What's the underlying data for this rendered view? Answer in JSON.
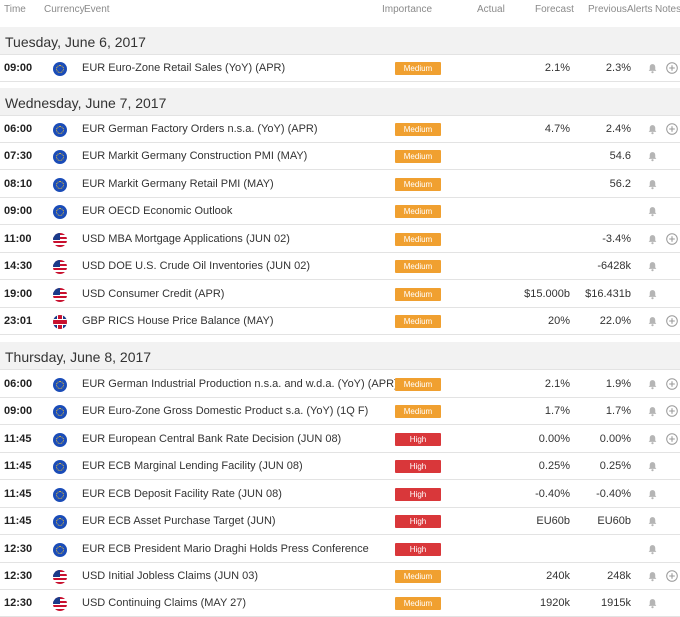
{
  "header": {
    "time": "Time",
    "currency": "Currency",
    "event": "Event",
    "importance": "Importance",
    "actual": "Actual",
    "forecast": "Forecast",
    "previous": "Previous",
    "alerts": "Alerts",
    "notes": "Notes"
  },
  "colors": {
    "medium": "#f0a030",
    "high": "#d9373a"
  },
  "days": [
    {
      "title": "Tuesday, June 6, 2017"
    },
    {
      "title": "Wednesday, June 7, 2017"
    },
    {
      "title": "Thursday, June 8, 2017"
    }
  ],
  "rows": [
    {
      "time": "09:00",
      "flag": "eur",
      "event": "EUR Euro-Zone Retail Sales (YoY) (APR)",
      "importance": "Medium",
      "forecast": "2.1%",
      "previous": "2.3%",
      "plus": true
    },
    {
      "time": "06:00",
      "flag": "eur",
      "event": "EUR German Factory Orders n.s.a. (YoY) (APR)",
      "importance": "Medium",
      "forecast": "4.7%",
      "previous": "2.4%",
      "plus": true
    },
    {
      "time": "07:30",
      "flag": "eur",
      "event": "EUR Markit Germany Construction PMI (MAY)",
      "importance": "Medium",
      "forecast": "",
      "previous": "54.6",
      "plus": false
    },
    {
      "time": "08:10",
      "flag": "eur",
      "event": "EUR Markit Germany Retail PMI (MAY)",
      "importance": "Medium",
      "forecast": "",
      "previous": "56.2",
      "plus": false
    },
    {
      "time": "09:00",
      "flag": "eur",
      "event": "EUR OECD Economic Outlook",
      "importance": "Medium",
      "forecast": "",
      "previous": "",
      "plus": false
    },
    {
      "time": "11:00",
      "flag": "usd",
      "event": "USD MBA Mortgage Applications (JUN 02)",
      "importance": "Medium",
      "forecast": "",
      "previous": "-3.4%",
      "plus": true
    },
    {
      "time": "14:30",
      "flag": "usd",
      "event": "USD DOE U.S. Crude Oil Inventories (JUN 02)",
      "importance": "Medium",
      "forecast": "",
      "previous": "-6428k",
      "plus": false
    },
    {
      "time": "19:00",
      "flag": "usd",
      "event": "USD Consumer Credit (APR)",
      "importance": "Medium",
      "forecast": "$15.000b",
      "previous": "$16.431b",
      "plus": false
    },
    {
      "time": "23:01",
      "flag": "gbp",
      "event": "GBP RICS House Price Balance (MAY)",
      "importance": "Medium",
      "forecast": "20%",
      "previous": "22.0%",
      "plus": true
    },
    {
      "time": "06:00",
      "flag": "eur",
      "event": "EUR German Industrial Production n.s.a. and w.d.a. (YoY) (APR)",
      "importance": "Medium",
      "forecast": "2.1%",
      "previous": "1.9%",
      "plus": true
    },
    {
      "time": "09:00",
      "flag": "eur",
      "event": "EUR Euro-Zone Gross Domestic Product s.a. (YoY) (1Q F)",
      "importance": "Medium",
      "forecast": "1.7%",
      "previous": "1.7%",
      "plus": true
    },
    {
      "time": "11:45",
      "flag": "eur",
      "event": "EUR European Central Bank Rate Decision (JUN 08)",
      "importance": "High",
      "forecast": "0.00%",
      "previous": "0.00%",
      "plus": true
    },
    {
      "time": "11:45",
      "flag": "eur",
      "event": "EUR ECB Marginal Lending Facility (JUN 08)",
      "importance": "High",
      "forecast": "0.25%",
      "previous": "0.25%",
      "plus": false
    },
    {
      "time": "11:45",
      "flag": "eur",
      "event": "EUR ECB Deposit Facility Rate (JUN 08)",
      "importance": "High",
      "forecast": "-0.40%",
      "previous": "-0.40%",
      "plus": false
    },
    {
      "time": "11:45",
      "flag": "eur",
      "event": "EUR ECB Asset Purchase Target (JUN)",
      "importance": "High",
      "forecast": "EU60b",
      "previous": "EU60b",
      "plus": false
    },
    {
      "time": "12:30",
      "flag": "eur",
      "event": "EUR ECB President Mario Draghi Holds Press Conference",
      "importance": "High",
      "forecast": "",
      "previous": "",
      "plus": false
    },
    {
      "time": "12:30",
      "flag": "usd",
      "event": "USD Initial Jobless Claims (JUN 03)",
      "importance": "Medium",
      "forecast": "240k",
      "previous": "248k",
      "plus": true
    },
    {
      "time": "12:30",
      "flag": "usd",
      "event": "USD Continuing Claims (MAY 27)",
      "importance": "Medium",
      "forecast": "1920k",
      "previous": "1915k",
      "plus": false
    }
  ]
}
